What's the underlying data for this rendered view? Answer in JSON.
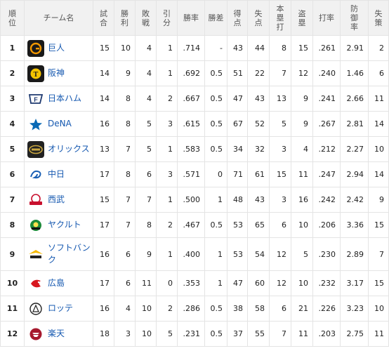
{
  "header": {
    "rank": [
      "順",
      "位"
    ],
    "team": "チーム名",
    "games": [
      "試",
      "合"
    ],
    "wins": [
      "勝",
      "利"
    ],
    "losses": [
      "敗",
      "戦"
    ],
    "draws": [
      "引",
      "分"
    ],
    "pct": "勝率",
    "gb": "勝差",
    "rs": [
      "得",
      "点"
    ],
    "ra": [
      "失",
      "点"
    ],
    "hr": [
      "本",
      "塁",
      "打"
    ],
    "sb": [
      "盗",
      "塁"
    ],
    "avg": "打率",
    "era": [
      "防",
      "御",
      "率"
    ],
    "err": [
      "失",
      "策"
    ]
  },
  "rows": [
    {
      "rank": "1",
      "team": "巨人",
      "logo": {
        "icon": "giants-logo",
        "bg": "#1a1a1a",
        "fg": "#f39800"
      },
      "g": "15",
      "w": "10",
      "l": "4",
      "d": "1",
      "pct": ".714",
      "gb": "-",
      "rs": "43",
      "ra": "44",
      "hr": "8",
      "sb": "15",
      "avg": ".261",
      "era": "2.91",
      "e": "2"
    },
    {
      "rank": "2",
      "team": "阪神",
      "logo": {
        "icon": "tigers-logo",
        "bg": "#1a1a1a",
        "fg": "#f5c400"
      },
      "g": "14",
      "w": "9",
      "l": "4",
      "d": "1",
      "pct": ".692",
      "gb": "0.5",
      "rs": "51",
      "ra": "22",
      "hr": "7",
      "sb": "12",
      "avg": ".240",
      "era": "1.46",
      "e": "6"
    },
    {
      "rank": "3",
      "team": "日本ハム",
      "logo": {
        "icon": "fighters-logo",
        "bg": "#ffffff",
        "fg": "#1f3a70"
      },
      "g": "14",
      "w": "8",
      "l": "4",
      "d": "2",
      "pct": ".667",
      "gb": "0.5",
      "rs": "47",
      "ra": "43",
      "hr": "13",
      "sb": "9",
      "avg": ".241",
      "era": "2.66",
      "e": "11"
    },
    {
      "rank": "4",
      "team": "DeNA",
      "logo": {
        "icon": "baystars-logo",
        "bg": "#ffffff",
        "fg": "#0a6ab6"
      },
      "g": "16",
      "w": "8",
      "l": "5",
      "d": "3",
      "pct": ".615",
      "gb": "0.5",
      "rs": "67",
      "ra": "52",
      "hr": "5",
      "sb": "9",
      "avg": ".267",
      "era": "2.81",
      "e": "14"
    },
    {
      "rank": "5",
      "team": "オリックス",
      "logo": {
        "icon": "buffaloes-logo",
        "bg": "#222222",
        "fg": "#c8a640"
      },
      "g": "13",
      "w": "7",
      "l": "5",
      "d": "1",
      "pct": ".583",
      "gb": "0.5",
      "rs": "34",
      "ra": "32",
      "hr": "3",
      "sb": "4",
      "avg": ".212",
      "era": "2.27",
      "e": "10"
    },
    {
      "rank": "6",
      "team": "中日",
      "logo": {
        "icon": "dragons-logo",
        "bg": "#ffffff",
        "fg": "#1a5fb4"
      },
      "g": "17",
      "w": "8",
      "l": "6",
      "d": "3",
      "pct": ".571",
      "gb": "0",
      "rs": "71",
      "ra": "61",
      "hr": "15",
      "sb": "11",
      "avg": ".247",
      "era": "2.94",
      "e": "14"
    },
    {
      "rank": "7",
      "team": "西武",
      "logo": {
        "icon": "lions-logo",
        "bg": "#ffffff",
        "fg": "#c8102e"
      },
      "g": "15",
      "w": "7",
      "l": "7",
      "d": "1",
      "pct": ".500",
      "gb": "1",
      "rs": "48",
      "ra": "43",
      "hr": "3",
      "sb": "16",
      "avg": ".242",
      "era": "2.42",
      "e": "9"
    },
    {
      "rank": "8",
      "team": "ヤクルト",
      "logo": {
        "icon": "swallows-logo",
        "bg": "#ffffff",
        "fg": "#1d8a3a"
      },
      "g": "17",
      "w": "7",
      "l": "8",
      "d": "2",
      "pct": ".467",
      "gb": "0.5",
      "rs": "53",
      "ra": "65",
      "hr": "6",
      "sb": "10",
      "avg": ".206",
      "era": "3.36",
      "e": "15"
    },
    {
      "rank": "9",
      "team": "ソフトバンク",
      "logo": {
        "icon": "hawks-logo",
        "bg": "#ffffff",
        "fg": "#f5b800"
      },
      "g": "16",
      "w": "6",
      "l": "9",
      "d": "1",
      "pct": ".400",
      "gb": "1",
      "rs": "53",
      "ra": "54",
      "hr": "12",
      "sb": "5",
      "avg": ".230",
      "era": "2.89",
      "e": "7"
    },
    {
      "rank": "10",
      "team": "広島",
      "logo": {
        "icon": "carp-logo",
        "bg": "#ffffff",
        "fg": "#d7171f"
      },
      "g": "17",
      "w": "6",
      "l": "11",
      "d": "0",
      "pct": ".353",
      "gb": "1",
      "rs": "47",
      "ra": "60",
      "hr": "12",
      "sb": "10",
      "avg": ".232",
      "era": "3.17",
      "e": "15"
    },
    {
      "rank": "11",
      "team": "ロッテ",
      "logo": {
        "icon": "marines-logo",
        "bg": "#ffffff",
        "fg": "#222222"
      },
      "g": "16",
      "w": "4",
      "l": "10",
      "d": "2",
      "pct": ".286",
      "gb": "0.5",
      "rs": "38",
      "ra": "58",
      "hr": "6",
      "sb": "21",
      "avg": ".226",
      "era": "3.23",
      "e": "10"
    },
    {
      "rank": "12",
      "team": "楽天",
      "logo": {
        "icon": "eagles-logo",
        "bg": "#ffffff",
        "fg": "#a6192e"
      },
      "g": "18",
      "w": "3",
      "l": "10",
      "d": "5",
      "pct": ".231",
      "gb": "0.5",
      "rs": "37",
      "ra": "55",
      "hr": "7",
      "sb": "11",
      "avg": ".203",
      "era": "2.75",
      "e": "11"
    }
  ]
}
